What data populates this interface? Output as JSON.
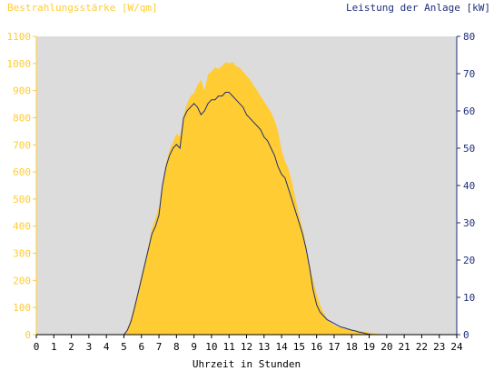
{
  "chart_data": {
    "type": "area",
    "left_axis_label": "Bestrahlungsstärke [W/qm]",
    "right_axis_label": "Leistung der Anlage [kW]",
    "xlabel": "Uhrzeit in Stunden",
    "xlim": [
      0,
      24
    ],
    "x_ticks": [
      "0",
      "1",
      "2",
      "3",
      "4",
      "5",
      "6",
      "7",
      "8",
      "9",
      "10",
      "11",
      "12",
      "13",
      "14",
      "15",
      "16",
      "17",
      "18",
      "19",
      "20",
      "21",
      "22",
      "23",
      "24"
    ],
    "left_ylim": [
      0,
      1100
    ],
    "left_ticks": [
      "0",
      "100",
      "200",
      "300",
      "400",
      "500",
      "600",
      "700",
      "800",
      "900",
      "1000",
      "1100"
    ],
    "right_ylim": [
      0,
      80
    ],
    "right_ticks": [
      "0",
      "10",
      "20",
      "30",
      "40",
      "50",
      "60",
      "70",
      "80"
    ],
    "grid": false,
    "series": [
      {
        "axis": "left",
        "x": [
          0,
          5.0,
          5.2,
          5.4,
          5.6,
          5.8,
          6.0,
          6.2,
          6.4,
          6.6,
          6.8,
          7.0,
          7.2,
          7.4,
          7.6,
          7.8,
          8.0,
          8.2,
          8.4,
          8.6,
          8.8,
          9.0,
          9.2,
          9.4,
          9.6,
          9.8,
          10.0,
          10.2,
          10.4,
          10.6,
          10.8,
          11.0,
          11.2,
          11.4,
          11.6,
          11.8,
          12.0,
          12.2,
          12.4,
          12.6,
          12.8,
          13.0,
          13.2,
          13.4,
          13.6,
          13.8,
          14.0,
          14.2,
          14.4,
          14.6,
          14.8,
          15.0,
          15.2,
          15.4,
          15.6,
          15.8,
          16.0,
          16.2,
          16.4,
          16.6,
          16.8,
          17.0,
          17.2,
          17.4,
          17.6,
          17.8,
          18.0,
          18.2,
          18.4,
          18.6,
          18.8,
          19.0,
          19.2,
          19.4,
          19.6,
          19.8,
          20.0,
          24
        ],
        "values": [
          0,
          0,
          20,
          60,
          110,
          160,
          220,
          270,
          330,
          390,
          430,
          470,
          560,
          630,
          680,
          710,
          740,
          730,
          810,
          850,
          880,
          890,
          920,
          940,
          900,
          960,
          970,
          985,
          980,
          990,
          1005,
          1000,
          1005,
          990,
          985,
          970,
          955,
          940,
          920,
          900,
          880,
          860,
          840,
          820,
          790,
          750,
          680,
          640,
          610,
          560,
          500,
          440,
          390,
          330,
          260,
          200,
          150,
          110,
          80,
          60,
          45,
          35,
          30,
          25,
          22,
          20,
          18,
          16,
          14,
          12,
          10,
          8,
          6,
          4,
          2,
          0,
          0,
          0
        ]
      },
      {
        "axis": "right",
        "name": "",
        "x": [
          0,
          5.0,
          5.2,
          5.4,
          5.6,
          5.8,
          6.0,
          6.2,
          6.4,
          6.6,
          6.8,
          7.0,
          7.2,
          7.4,
          7.6,
          7.8,
          8.0,
          8.2,
          8.4,
          8.6,
          8.8,
          9.0,
          9.2,
          9.4,
          9.6,
          9.8,
          10.0,
          10.2,
          10.4,
          10.6,
          10.8,
          11.0,
          11.2,
          11.4,
          11.6,
          11.8,
          12.0,
          12.2,
          12.4,
          12.6,
          12.8,
          13.0,
          13.2,
          13.4,
          13.6,
          13.8,
          14.0,
          14.2,
          14.4,
          14.6,
          14.8,
          15.0,
          15.2,
          15.4,
          15.6,
          15.8,
          16.0,
          16.2,
          16.4,
          16.6,
          16.8,
          17.0,
          17.2,
          17.4,
          17.6,
          17.8,
          18.0,
          18.2,
          18.4,
          18.6,
          18.8,
          19.0,
          19.2,
          19.4,
          19.6,
          19.8,
          20.0,
          24
        ],
        "values": [
          0,
          0,
          1.2,
          3.5,
          7,
          11,
          15,
          19,
          23,
          27,
          29,
          32,
          40,
          45,
          48,
          50,
          51,
          50,
          58,
          60,
          61,
          62,
          61,
          59,
          60,
          62,
          63,
          63,
          64,
          64,
          65,
          65,
          64,
          63,
          62,
          61,
          59,
          58,
          57,
          56,
          55,
          53,
          52,
          50,
          48,
          45,
          43,
          42,
          39,
          36,
          33,
          30,
          27,
          23,
          18,
          12,
          8,
          6,
          5,
          4,
          3.5,
          3,
          2.5,
          2,
          1.8,
          1.5,
          1.2,
          1,
          0.7,
          0.5,
          0.3,
          0.1,
          0,
          0,
          0,
          0,
          0,
          0
        ]
      }
    ]
  },
  "colors": {
    "plot_background": "#dcdcdc",
    "irradiance_fill": "#ffcc33",
    "power_line": "#1f2f7a",
    "left_axis": "#ffcc33",
    "right_axis": "#1f2f7a",
    "x_axis_text": "#000000"
  }
}
